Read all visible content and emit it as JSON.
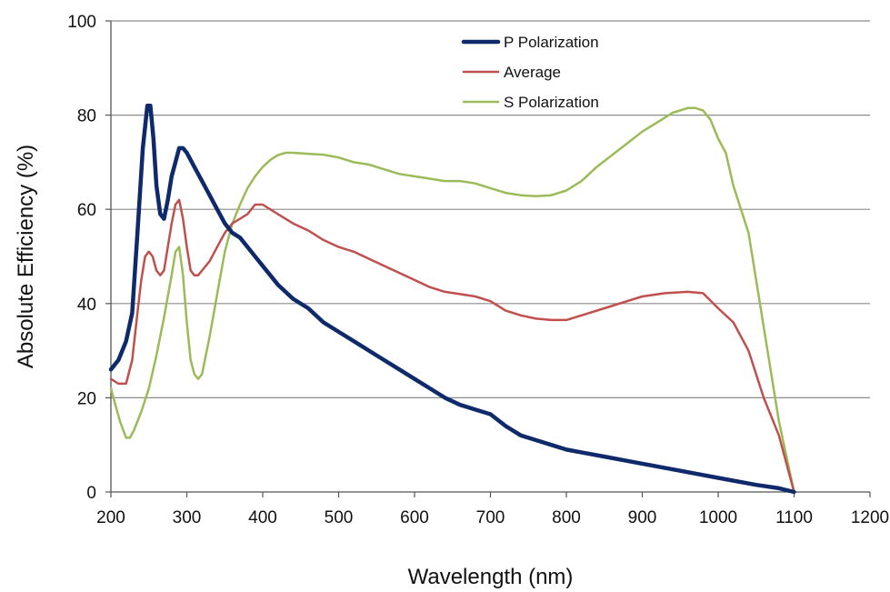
{
  "chart_data": {
    "type": "line",
    "xlabel": "Wavelength (nm)",
    "ylabel": "Absolute Efficiency (%)",
    "xlim": [
      200,
      1200
    ],
    "ylim": [
      0,
      100
    ],
    "xticks": [
      "200",
      "300",
      "400",
      "500",
      "600",
      "700",
      "800",
      "900",
      "1000",
      "1100",
      "1200"
    ],
    "yticks": [
      "0",
      "20",
      "40",
      "60",
      "80",
      "100"
    ],
    "grid": "horizontal",
    "legend_position": "top-center",
    "series": [
      {
        "name": "P Polarization",
        "color": "#0e2a6b",
        "x": [
          200,
          210,
          220,
          228,
          235,
          242,
          248,
          252,
          256,
          260,
          265,
          270,
          275,
          280,
          285,
          290,
          295,
          300,
          310,
          320,
          330,
          340,
          350,
          360,
          370,
          380,
          390,
          400,
          420,
          440,
          460,
          480,
          500,
          520,
          540,
          560,
          580,
          600,
          620,
          640,
          660,
          680,
          700,
          720,
          740,
          760,
          780,
          800,
          850,
          900,
          950,
          1000,
          1050,
          1080,
          1100
        ],
        "values": [
          26,
          28,
          32,
          38,
          55,
          73,
          82,
          82,
          75,
          65,
          59,
          58,
          62,
          67,
          70,
          73,
          73,
          72,
          69,
          66,
          63,
          60,
          57,
          55,
          54,
          52,
          50,
          48,
          44,
          41,
          39,
          36,
          34,
          32,
          30,
          28,
          26,
          24,
          22,
          20,
          18.5,
          17.5,
          16.5,
          14,
          12,
          11,
          10,
          9,
          7.5,
          6,
          4.5,
          3,
          1.5,
          0.8,
          0
        ]
      },
      {
        "name": "Average",
        "color": "#c0504d",
        "x": [
          200,
          210,
          220,
          228,
          235,
          240,
          245,
          250,
          255,
          260,
          265,
          270,
          275,
          280,
          285,
          290,
          295,
          300,
          305,
          310,
          315,
          320,
          330,
          340,
          350,
          360,
          370,
          380,
          390,
          400,
          420,
          440,
          460,
          480,
          500,
          520,
          540,
          560,
          580,
          600,
          620,
          640,
          660,
          680,
          700,
          720,
          740,
          760,
          780,
          800,
          820,
          850,
          880,
          900,
          930,
          960,
          980,
          1000,
          1020,
          1040,
          1060,
          1080,
          1100
        ],
        "values": [
          24,
          23,
          23,
          28,
          38,
          45,
          50,
          51,
          50,
          47,
          46,
          47,
          52,
          57,
          61,
          62,
          58,
          52,
          47,
          46,
          46,
          47,
          49,
          52,
          55,
          57,
          58,
          59,
          61,
          61,
          59,
          57,
          55.5,
          53.5,
          52,
          51,
          49.5,
          48,
          46.5,
          45,
          43.5,
          42.5,
          42,
          41.5,
          40.5,
          38.5,
          37.5,
          36.8,
          36.5,
          36.5,
          37.5,
          39,
          40.5,
          41.5,
          42.2,
          42.5,
          42.2,
          39,
          36,
          30,
          20,
          12,
          0
        ]
      },
      {
        "name": "S Polarization",
        "color": "#9bbb59",
        "x": [
          200,
          205,
          212,
          220,
          225,
          230,
          240,
          250,
          260,
          270,
          280,
          285,
          290,
          295,
          300,
          305,
          310,
          315,
          320,
          330,
          340,
          350,
          360,
          370,
          380,
          390,
          400,
          410,
          420,
          430,
          440,
          460,
          480,
          500,
          520,
          540,
          560,
          580,
          600,
          620,
          640,
          660,
          680,
          700,
          720,
          740,
          760,
          780,
          800,
          820,
          840,
          860,
          880,
          900,
          920,
          940,
          960,
          970,
          980,
          990,
          1000,
          1010,
          1020,
          1040,
          1060,
          1080,
          1100
        ],
        "values": [
          22,
          19,
          15,
          11.5,
          11.5,
          13,
          17,
          22,
          29,
          37,
          46,
          51,
          52,
          46,
          36,
          28,
          25,
          24,
          25,
          33,
          42,
          51,
          57,
          61,
          64.5,
          67,
          69,
          70.5,
          71.5,
          72,
          72,
          71.8,
          71.6,
          71,
          70,
          69.5,
          68.5,
          67.5,
          67,
          66.5,
          66,
          66,
          65.5,
          64.5,
          63.5,
          63,
          62.8,
          63,
          64,
          66,
          69,
          71.5,
          74,
          76.5,
          78.5,
          80.5,
          81.5,
          81.5,
          81,
          79,
          75,
          72,
          65,
          55,
          35,
          15,
          0
        ]
      }
    ]
  }
}
